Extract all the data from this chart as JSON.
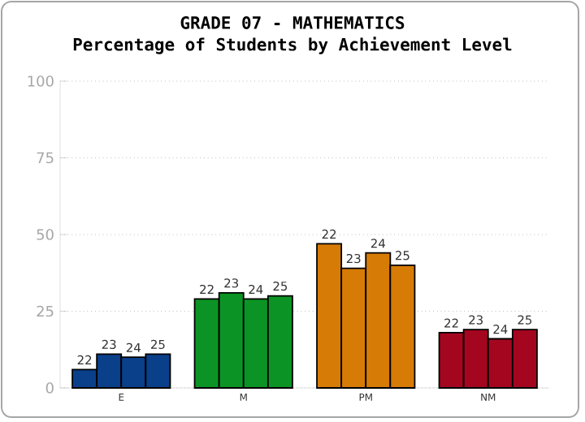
{
  "chart_data": {
    "type": "bar",
    "title": "GRADE 07 - MATHEMATICS",
    "subtitle": "Percentage of Students by Achievement Level",
    "categories": [
      "E",
      "M",
      "PM",
      "NM"
    ],
    "series": [
      {
        "name": "22",
        "colors": [
          "#0a3f8a",
          "#0b9425",
          "#d67b06",
          "#a5061f"
        ],
        "values": [
          6,
          29,
          47,
          18
        ]
      },
      {
        "name": "23",
        "colors": [
          "#0a3f8a",
          "#0b9425",
          "#d67b06",
          "#a5061f"
        ],
        "values": [
          11,
          31,
          39,
          19
        ]
      },
      {
        "name": "24",
        "colors": [
          "#0a3f8a",
          "#0b9425",
          "#d67b06",
          "#a5061f"
        ],
        "values": [
          10,
          29,
          44,
          16
        ]
      },
      {
        "name": "25",
        "colors": [
          "#0a3f8a",
          "#0b9425",
          "#d67b06",
          "#a5061f"
        ],
        "values": [
          11,
          30,
          40,
          19
        ]
      }
    ],
    "ylim": [
      0,
      100
    ],
    "yticks": [
      0,
      25,
      50,
      75,
      100
    ],
    "grid": "y"
  }
}
